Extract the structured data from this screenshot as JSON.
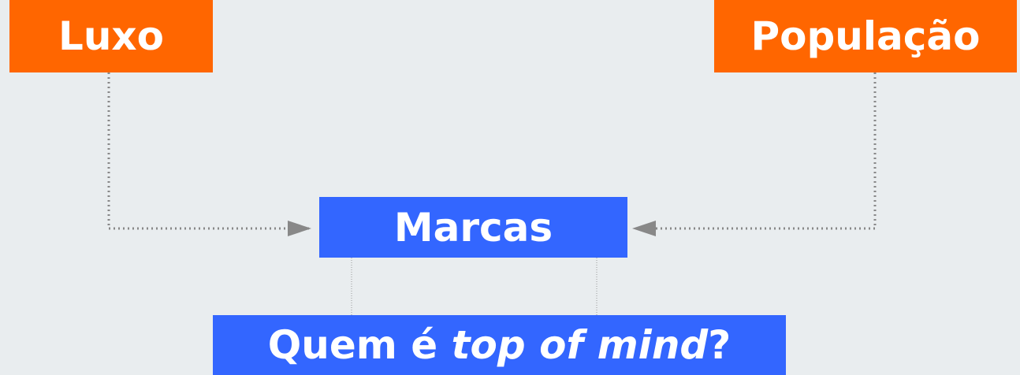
{
  "nodes": [
    {
      "label": "Luxo"
    },
    {
      "label": "População"
    },
    {
      "label": "Marcas"
    }
  ],
  "question": {
    "start": "Quem é",
    "emphasis": "top of mind",
    "end": "?"
  }
}
